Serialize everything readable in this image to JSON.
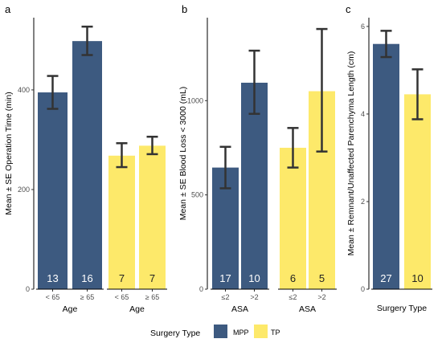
{
  "chart_data": [
    {
      "type": "bar",
      "panel_label": "a",
      "ylabel": "Mean ± SE Operation Time (min)",
      "ylim": [
        0,
        545
      ],
      "yticks": [
        0,
        200,
        400
      ],
      "groups": [
        {
          "xlabel": "Age",
          "bars": [
            {
              "category": "< 65",
              "series": "MPP",
              "value": 395,
              "se_low": 362,
              "se_high": 428,
              "n": "13"
            },
            {
              "category": "≥ 65",
              "series": "MPP",
              "value": 498,
              "se_low": 470,
              "se_high": 527,
              "n": "16"
            }
          ]
        },
        {
          "xlabel": "Age",
          "bars": [
            {
              "category": "< 65",
              "series": "TP",
              "value": 268,
              "se_low": 245,
              "se_high": 293,
              "n": "7"
            },
            {
              "category": "≥ 65",
              "series": "TP",
              "value": 288,
              "se_low": 271,
              "se_high": 306,
              "n": "7"
            }
          ]
        }
      ]
    },
    {
      "type": "bar",
      "panel_label": "b",
      "ylabel": "Mean ± SE Blood Loss < 3000 (mL)",
      "ylim": [
        0,
        1440
      ],
      "yticks": [
        0,
        500,
        1000
      ],
      "groups": [
        {
          "xlabel": "ASA",
          "bars": [
            {
              "category": "≤2",
              "series": "MPP",
              "value": 645,
              "se_low": 535,
              "se_high": 755,
              "n": "17"
            },
            {
              "category": ">2",
              "series": "MPP",
              "value": 1095,
              "se_low": 930,
              "se_high": 1265,
              "n": "10"
            }
          ]
        },
        {
          "xlabel": "ASA",
          "bars": [
            {
              "category": "≤2",
              "series": "TP",
              "value": 750,
              "se_low": 645,
              "se_high": 855,
              "n": "6"
            },
            {
              "category": ">2",
              "series": "TP",
              "value": 1050,
              "se_low": 730,
              "se_high": 1380,
              "n": "5"
            }
          ]
        }
      ]
    },
    {
      "type": "bar",
      "panel_label": "c",
      "ylabel": "Mean ± Remnant/Unaffected Parenchyma Length (cm)",
      "ylim": [
        0,
        6.2
      ],
      "yticks": [
        0,
        2,
        4,
        6
      ],
      "groups": [
        {
          "xlabel": "Surgery Type",
          "bars": [
            {
              "category": "",
              "series": "MPP",
              "value": 5.6,
              "se_low": 5.3,
              "se_high": 5.9,
              "n": "27"
            },
            {
              "category": "",
              "series": "TP",
              "value": 4.45,
              "se_low": 3.88,
              "se_high": 5.02,
              "n": "10"
            }
          ]
        }
      ]
    }
  ],
  "legend": {
    "title": "Surgery Type",
    "position": "bottom",
    "items": [
      {
        "name": "MPP",
        "color": "#3d5a80"
      },
      {
        "name": "TP",
        "color": "#fde96a"
      }
    ]
  },
  "colors": {
    "MPP": "#3d5a80",
    "TP": "#fde96a",
    "MPP_count_text": "#ffffff",
    "TP_count_text": "#222222",
    "errorbar": "#333333",
    "axis": "#000000"
  }
}
